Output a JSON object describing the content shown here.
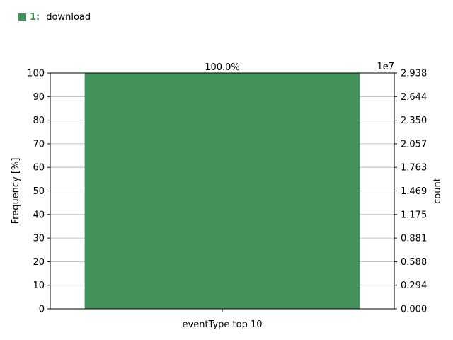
{
  "legend": {
    "index": "1:",
    "label": "download",
    "color": "#44925b"
  },
  "chart_data": {
    "type": "bar",
    "categories": [
      ""
    ],
    "values": [
      100.0
    ],
    "value_labels": [
      "100.0%"
    ],
    "color": "#44925b",
    "xlabel": "eventType top 10",
    "ylabel": "Frequency [%]",
    "ylim": [
      0,
      100
    ],
    "yticks": [
      0,
      10,
      20,
      30,
      40,
      50,
      60,
      70,
      80,
      90,
      100
    ],
    "ytick_labels": [
      "0",
      "10",
      "20",
      "30",
      "40",
      "50",
      "60",
      "70",
      "80",
      "90",
      "100"
    ],
    "y2label": "count",
    "y2_offset_label": "1e7",
    "y2ticks": [
      "0.000",
      "0.294",
      "0.588",
      "0.881",
      "1.175",
      "1.469",
      "1.763",
      "2.057",
      "2.350",
      "2.644",
      "2.938"
    ],
    "grid": true,
    "legend_position": "top-left"
  }
}
